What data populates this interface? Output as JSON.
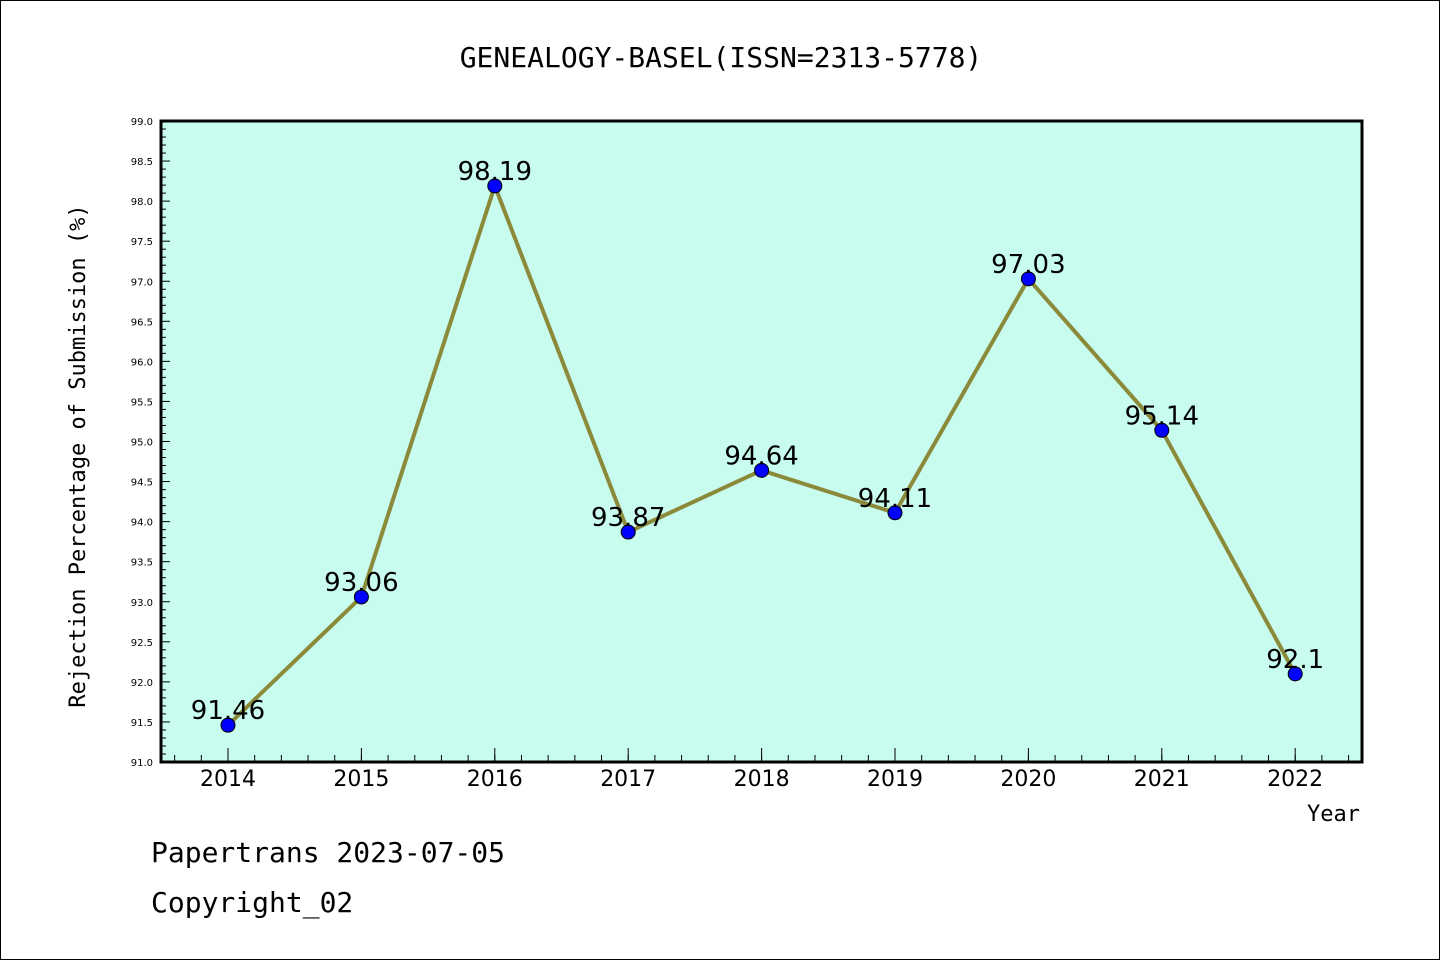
{
  "chart_data": {
    "type": "line",
    "title": "GENEALOGY-BASEL(ISSN=2313-5778)",
    "xlabel": "Year",
    "ylabel": "Rejection Percentage of Submission (%)",
    "categories": [
      "2014",
      "2015",
      "2016",
      "2017",
      "2018",
      "2019",
      "2020",
      "2021",
      "2022"
    ],
    "values": [
      91.46,
      93.06,
      98.19,
      93.87,
      94.64,
      94.11,
      97.03,
      95.14,
      92.1
    ],
    "data_labels": [
      "91.46",
      "93.06",
      "98.19",
      "93.87",
      "94.64",
      "94.11",
      "97.03",
      "95.14",
      "92.1"
    ],
    "ylim": [
      91.0,
      99.0
    ],
    "yticks": [
      "91.0",
      "91.5",
      "92.0",
      "92.5",
      "93.0",
      "93.5",
      "94.0",
      "94.5",
      "95.0",
      "95.5",
      "96.0",
      "96.5",
      "97.0",
      "97.5",
      "98.0",
      "98.5",
      "99.0"
    ],
    "grid": false,
    "colors": {
      "plot_background": "#c8fcee",
      "line": "#8b8a3a",
      "marker": "#0000ff"
    }
  },
  "footer": {
    "line1": "Papertrans 2023-07-05",
    "line2": "Copyright_02"
  }
}
